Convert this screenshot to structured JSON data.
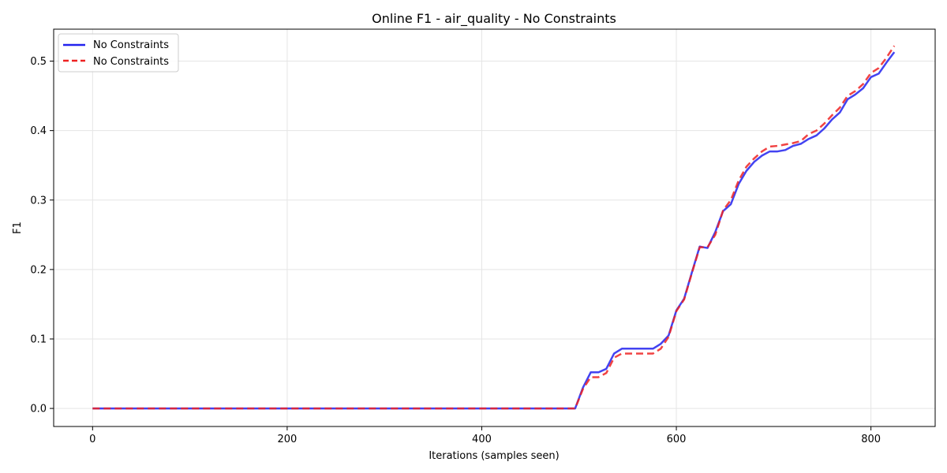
{
  "chart_data": {
    "type": "line",
    "title": "Online F1 - air_quality - No Constraints",
    "xlabel": "Iterations (samples seen)",
    "ylabel": "F1",
    "xlim": [
      -40,
      866
    ],
    "ylim": [
      -0.026,
      0.546
    ],
    "xticks": [
      0,
      200,
      400,
      600,
      800
    ],
    "yticks": [
      0.0,
      0.1,
      0.2,
      0.3,
      0.4,
      0.5
    ],
    "xtick_labels": [
      "0",
      "200",
      "400",
      "600",
      "800"
    ],
    "ytick_labels": [
      "0.0",
      "0.1",
      "0.2",
      "0.3",
      "0.4",
      "0.5"
    ],
    "grid": true,
    "legend_position": "top-left",
    "series": [
      {
        "name": "No Constraints",
        "color": "#2222ee",
        "style": "solid",
        "points": [
          [
            0,
            0.0
          ],
          [
            100,
            0.0
          ],
          [
            200,
            0.0
          ],
          [
            300,
            0.0
          ],
          [
            400,
            0.0
          ],
          [
            496,
            0.0
          ],
          [
            504,
            0.03
          ],
          [
            512,
            0.052
          ],
          [
            520,
            0.052
          ],
          [
            528,
            0.057
          ],
          [
            536,
            0.079
          ],
          [
            544,
            0.086
          ],
          [
            552,
            0.086
          ],
          [
            560,
            0.086
          ],
          [
            568,
            0.086
          ],
          [
            576,
            0.086
          ],
          [
            584,
            0.093
          ],
          [
            592,
            0.105
          ],
          [
            600,
            0.141
          ],
          [
            608,
            0.158
          ],
          [
            616,
            0.196
          ],
          [
            624,
            0.233
          ],
          [
            632,
            0.231
          ],
          [
            640,
            0.254
          ],
          [
            648,
            0.284
          ],
          [
            656,
            0.294
          ],
          [
            664,
            0.323
          ],
          [
            672,
            0.342
          ],
          [
            680,
            0.355
          ],
          [
            688,
            0.364
          ],
          [
            696,
            0.37
          ],
          [
            704,
            0.37
          ],
          [
            712,
            0.372
          ],
          [
            720,
            0.378
          ],
          [
            728,
            0.381
          ],
          [
            736,
            0.388
          ],
          [
            744,
            0.393
          ],
          [
            752,
            0.403
          ],
          [
            760,
            0.416
          ],
          [
            768,
            0.426
          ],
          [
            776,
            0.445
          ],
          [
            784,
            0.452
          ],
          [
            792,
            0.461
          ],
          [
            800,
            0.477
          ],
          [
            808,
            0.482
          ],
          [
            816,
            0.498
          ],
          [
            824,
            0.513
          ]
        ]
      },
      {
        "name": "No Constraints",
        "color": "#ee2222",
        "style": "dashed",
        "points": [
          [
            0,
            0.0
          ],
          [
            100,
            0.0
          ],
          [
            200,
            0.0
          ],
          [
            300,
            0.0
          ],
          [
            400,
            0.0
          ],
          [
            496,
            0.0
          ],
          [
            504,
            0.028
          ],
          [
            512,
            0.045
          ],
          [
            520,
            0.045
          ],
          [
            528,
            0.051
          ],
          [
            536,
            0.073
          ],
          [
            544,
            0.079
          ],
          [
            552,
            0.079
          ],
          [
            560,
            0.079
          ],
          [
            568,
            0.079
          ],
          [
            576,
            0.079
          ],
          [
            584,
            0.086
          ],
          [
            592,
            0.103
          ],
          [
            600,
            0.14
          ],
          [
            608,
            0.157
          ],
          [
            616,
            0.195
          ],
          [
            624,
            0.232
          ],
          [
            632,
            0.232
          ],
          [
            640,
            0.25
          ],
          [
            648,
            0.285
          ],
          [
            656,
            0.3
          ],
          [
            664,
            0.328
          ],
          [
            672,
            0.348
          ],
          [
            680,
            0.36
          ],
          [
            688,
            0.37
          ],
          [
            696,
            0.377
          ],
          [
            704,
            0.378
          ],
          [
            712,
            0.38
          ],
          [
            720,
            0.382
          ],
          [
            728,
            0.385
          ],
          [
            736,
            0.395
          ],
          [
            744,
            0.4
          ],
          [
            752,
            0.41
          ],
          [
            760,
            0.422
          ],
          [
            768,
            0.433
          ],
          [
            776,
            0.45
          ],
          [
            784,
            0.457
          ],
          [
            792,
            0.467
          ],
          [
            800,
            0.483
          ],
          [
            808,
            0.49
          ],
          [
            816,
            0.505
          ],
          [
            824,
            0.522
          ]
        ]
      }
    ]
  }
}
